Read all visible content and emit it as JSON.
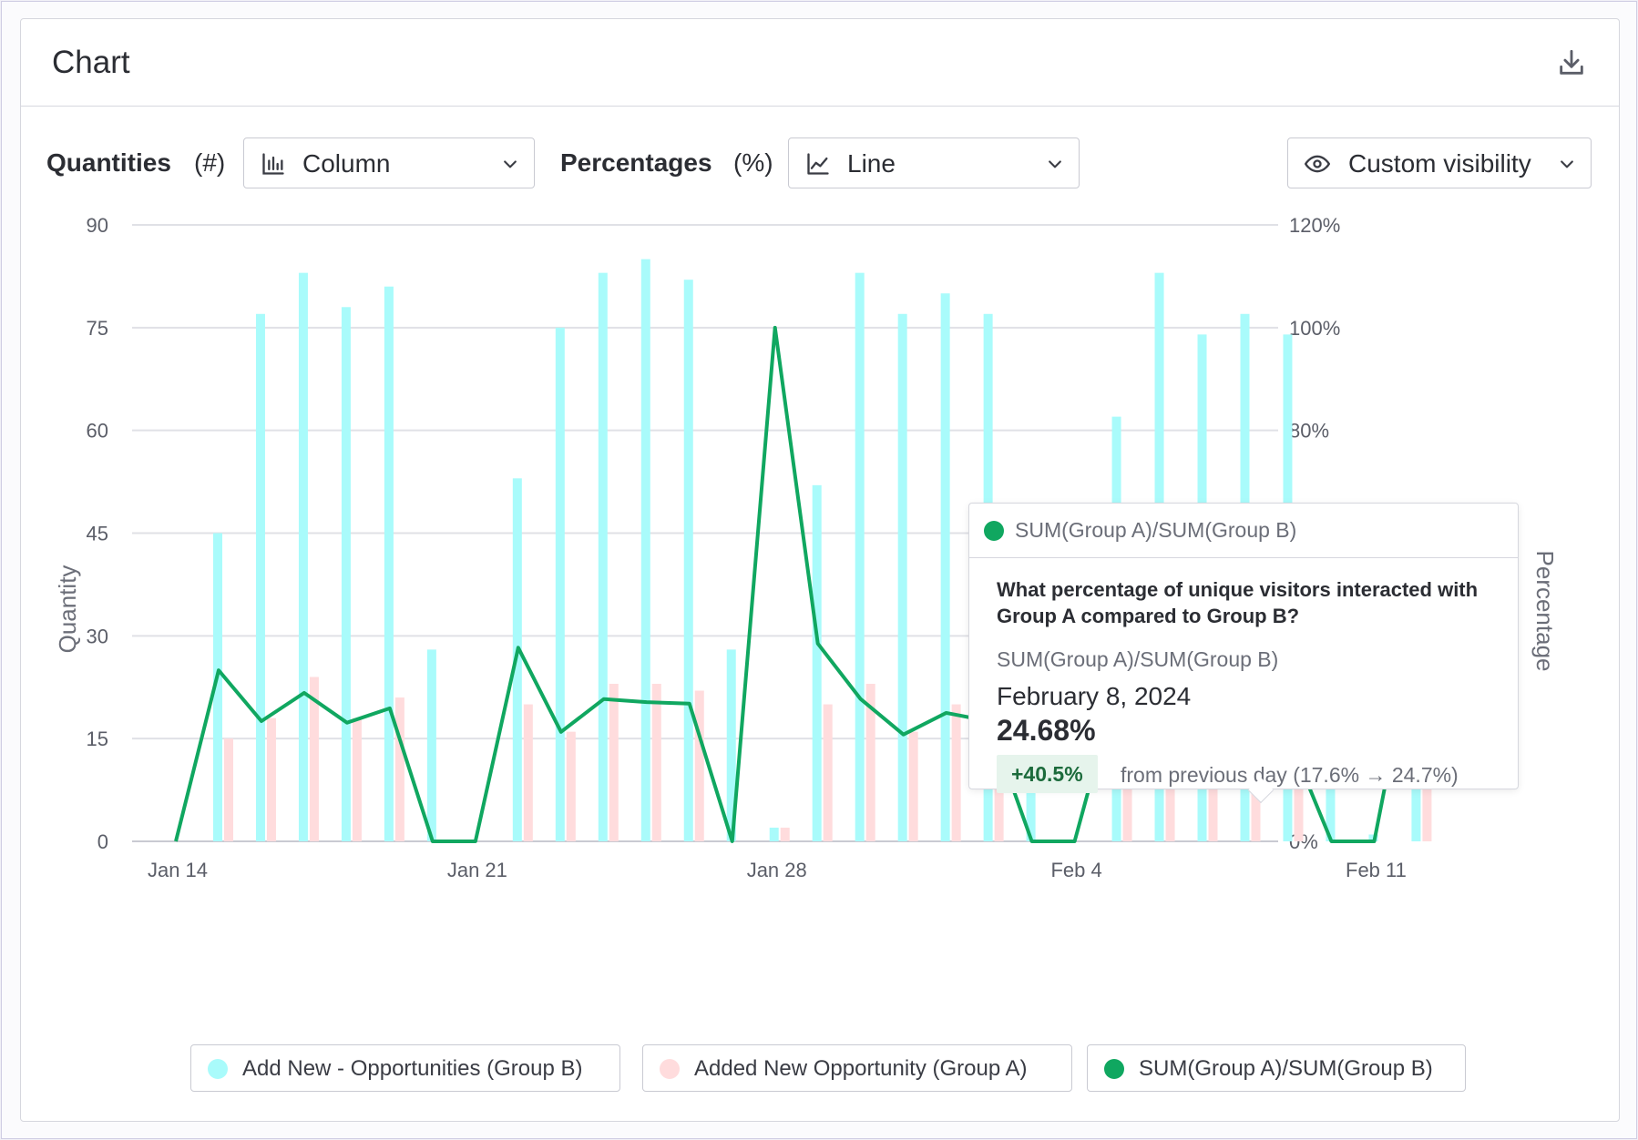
{
  "header": {
    "title": "Chart",
    "download_icon": "download-icon"
  },
  "controls": {
    "quantities_label": "Quantities",
    "quantities_unit": "(#)",
    "quantities_select": "Column",
    "percentages_label": "Percentages",
    "percentages_unit": "(%)",
    "percentages_select": "Line",
    "visibility_select": "Custom visibility"
  },
  "legend": [
    {
      "label": "Add New - Opportunities (Group B)",
      "color": "#a9fbfb"
    },
    {
      "label": "Added New Opportunity (Group A)",
      "color": "#ffdcdd"
    },
    {
      "label": "SUM(Group A)/SUM(Group B)",
      "color": "#10a760"
    }
  ],
  "tooltip": {
    "series": "SUM(Group A)/SUM(Group B)",
    "question": "What percentage of unique visitors interacted with Group A compared to Group B?",
    "metric": "SUM(Group A)/SUM(Group B)",
    "date": "February 8, 2024",
    "value": "24.68%",
    "badge": "+40.5%",
    "change_text": "from previous day (17.6% → 24.7%)",
    "color": "#10a760"
  },
  "chart_data": {
    "type": "bar",
    "x": [
      "Jan 14",
      "Jan 15",
      "Jan 16",
      "Jan 17",
      "Jan 18",
      "Jan 19",
      "Jan 20",
      "Jan 21",
      "Jan 22",
      "Jan 23",
      "Jan 24",
      "Jan 25",
      "Jan 26",
      "Jan 27",
      "Jan 28",
      "Jan 29",
      "Jan 30",
      "Jan 31",
      "Feb 1",
      "Feb 2",
      "Feb 3",
      "Feb 4",
      "Feb 5",
      "Feb 6",
      "Feb 7",
      "Feb 8",
      "Feb 9",
      "Feb 10",
      "Feb 11",
      "Feb 12"
    ],
    "x_tick_labels": [
      "Jan 14",
      "Jan 21",
      "Jan 28",
      "Feb 4",
      "Feb 11"
    ],
    "series": [
      {
        "name": "Add New - Opportunities (Group B)",
        "axis": "left",
        "kind": "column",
        "color": "#a9fbfb",
        "values": [
          0,
          45,
          77,
          83,
          78,
          81,
          28,
          0,
          53,
          75,
          83,
          85,
          82,
          28,
          2,
          52,
          83,
          77,
          80,
          77,
          38,
          0,
          62,
          83,
          74,
          77,
          74,
          38,
          1,
          40
        ]
      },
      {
        "name": "Added New Opportunity (Group A)",
        "axis": "left",
        "kind": "column",
        "color": "#ffdcdd",
        "values": [
          0,
          15,
          18,
          24,
          18,
          21,
          0,
          0,
          20,
          16,
          23,
          23,
          22,
          0,
          2,
          20,
          23,
          16,
          20,
          18,
          0,
          0,
          19,
          21,
          13,
          19,
          15,
          0,
          0,
          17
        ]
      },
      {
        "name": "SUM(Group A)/SUM(Group B)",
        "axis": "right",
        "kind": "line",
        "color": "#10a760",
        "values": [
          0,
          33.3,
          23.4,
          28.9,
          23.1,
          25.9,
          0,
          0,
          37.7,
          21.3,
          27.7,
          27.1,
          26.8,
          0,
          100,
          38.5,
          27.7,
          20.8,
          25,
          23.4,
          0,
          0,
          30.6,
          25.3,
          17.6,
          24.68,
          20.3,
          0,
          0,
          42.5
        ]
      }
    ],
    "ylabel": "Quantity",
    "y2label": "Percentage",
    "ylim": [
      0,
      90
    ],
    "y_ticks": [
      0,
      15,
      30,
      45,
      60,
      75,
      90
    ],
    "y2lim": [
      0,
      120
    ],
    "y2_ticks": [
      "0%",
      "20%",
      "40%",
      "60%",
      "80%",
      "100%",
      "120%"
    ],
    "grid": true,
    "legend": "bottom",
    "highlighted_point": {
      "series": "SUM(Group A)/SUM(Group B)",
      "x": "Feb 8"
    }
  }
}
